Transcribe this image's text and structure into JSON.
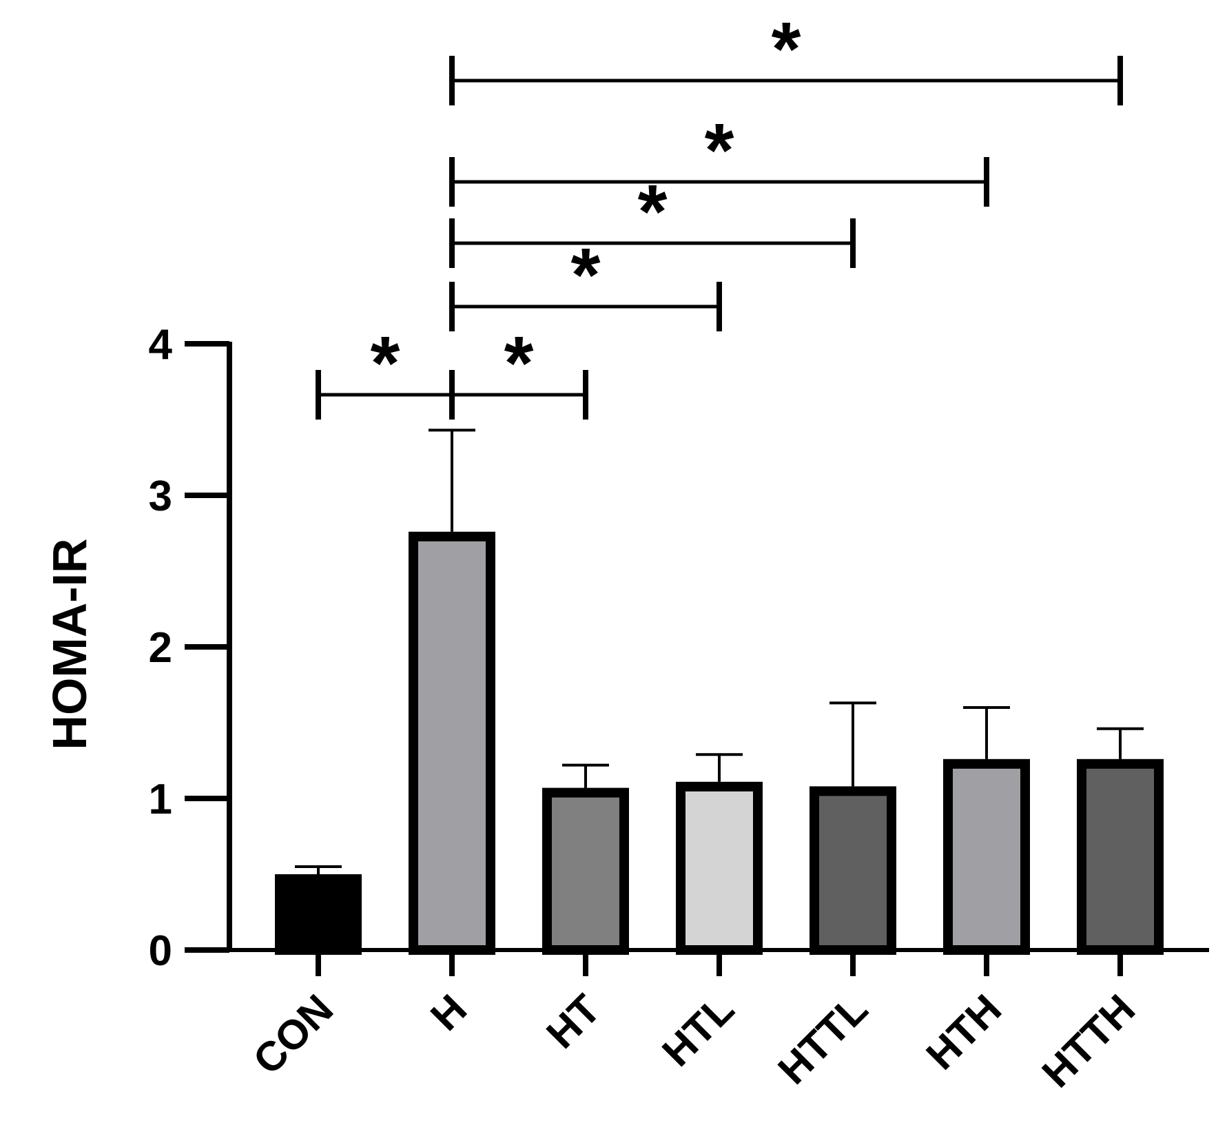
{
  "chart_data": {
    "type": "bar",
    "y_label": "HOMA-IR",
    "categories": [
      "CON",
      "H",
      "HT",
      "HTL",
      "HTTL",
      "HTH",
      "HTTH"
    ],
    "values": [
      0.5,
      2.76,
      1.07,
      1.11,
      1.08,
      1.26,
      1.26
    ],
    "errors": [
      0.05,
      0.67,
      0.15,
      0.18,
      0.55,
      0.34,
      0.2
    ],
    "colors": [
      "#000000",
      "#a0a0a4",
      "#808080",
      "#d4d4d4",
      "#606060",
      "#a0a0a4",
      "#606060"
    ],
    "ylim": [
      0,
      4
    ],
    "yticks": [
      0,
      1,
      2,
      3,
      4
    ],
    "comparisons": [
      {
        "groups": [
          "H",
          "CON"
        ],
        "label": "*"
      },
      {
        "groups": [
          "H",
          "HT"
        ],
        "label": "*"
      },
      {
        "groups": [
          "H",
          "HTL"
        ],
        "label": "*"
      },
      {
        "groups": [
          "H",
          "HTTL"
        ],
        "label": "*"
      },
      {
        "groups": [
          "H",
          "HTH"
        ],
        "label": "*"
      },
      {
        "groups": [
          "H",
          "HTTH"
        ],
        "label": "*"
      }
    ]
  }
}
